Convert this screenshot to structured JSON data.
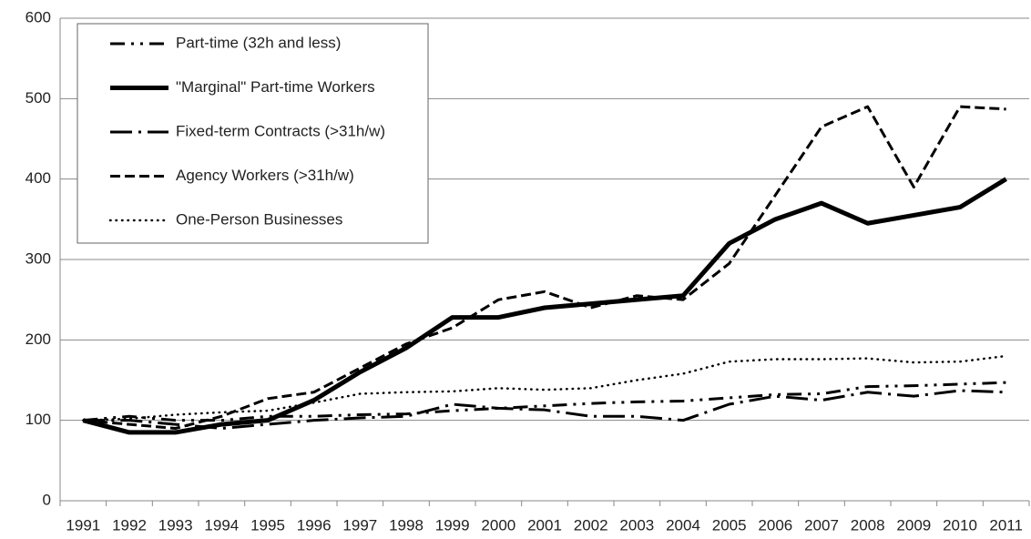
{
  "chart_data": {
    "type": "line",
    "categories": [
      "1991",
      "1992",
      "1993",
      "1994",
      "1995",
      "1996",
      "1997",
      "1998",
      "1999",
      "2000",
      "2001",
      "2002",
      "2003",
      "2004",
      "2005",
      "2006",
      "2007",
      "2008",
      "2009",
      "2010",
      "2011"
    ],
    "series": [
      {
        "name": "Part-time (32h and less)",
        "color": "#000000",
        "values": [
          100,
          105,
          100,
          100,
          105,
          105,
          107,
          108,
          112,
          115,
          118,
          121,
          123,
          124,
          128,
          132,
          133,
          142,
          143,
          145,
          147
        ]
      },
      {
        "name": "\"Marginal\" Part-time Workers",
        "color": "#000000",
        "values": [
          100,
          85,
          85,
          95,
          100,
          125,
          160,
          190,
          228,
          228,
          240,
          245,
          250,
          255,
          320,
          350,
          370,
          345,
          355,
          365,
          400
        ]
      },
      {
        "name": "Fixed-term Contracts (>31h/w)",
        "color": "#000000",
        "values": [
          100,
          100,
          95,
          90,
          95,
          100,
          103,
          105,
          120,
          115,
          113,
          105,
          105,
          100,
          120,
          130,
          125,
          135,
          130,
          137,
          135
        ]
      },
      {
        "name": "Agency Workers (>31h/w)",
        "color": "#000000",
        "values": [
          100,
          95,
          90,
          105,
          127,
          135,
          165,
          195,
          215,
          250,
          260,
          240,
          255,
          250,
          295,
          380,
          465,
          490,
          390,
          490,
          487
        ]
      },
      {
        "name": "One-Person Businesses",
        "color": "#000000",
        "values": [
          100,
          102,
          107,
          110,
          112,
          122,
          133,
          135,
          136,
          140,
          138,
          140,
          150,
          158,
          173,
          176,
          176,
          177,
          172,
          173,
          180
        ]
      }
    ],
    "ylim": [
      0,
      600
    ],
    "yticks": [
      0,
      100,
      200,
      300,
      400,
      500,
      600
    ],
    "grid": true,
    "legend": "upper left"
  }
}
